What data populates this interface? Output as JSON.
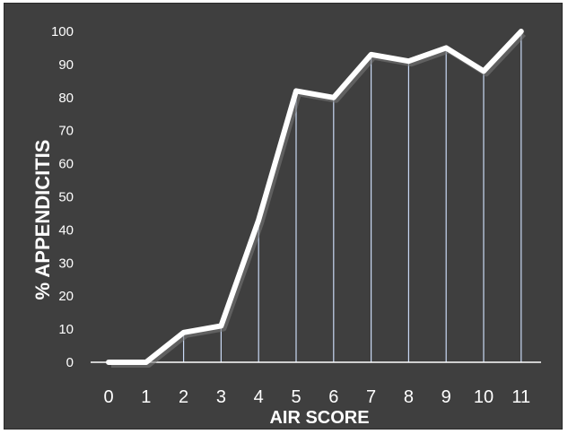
{
  "chart_data": {
    "type": "line",
    "xlabel": "AIR SCORE",
    "ylabel": "% APPENDICITIS",
    "x": [
      0,
      1,
      2,
      3,
      4,
      5,
      6,
      7,
      8,
      9,
      10,
      11
    ],
    "x_tick_labels": [
      "0",
      "1",
      "2",
      "3",
      "4",
      "5",
      "6",
      "7",
      "8",
      "9",
      "10",
      "11"
    ],
    "y_tick_labels": [
      "0",
      "10",
      "20",
      "30",
      "40",
      "50",
      "60",
      "70",
      "80",
      "90",
      "100"
    ],
    "series": [
      {
        "values": [
          0,
          0,
          9,
          11,
          43,
          82,
          80,
          93,
          91,
          95,
          88,
          100
        ]
      }
    ],
    "ylim": [
      0,
      100
    ],
    "drop_lines": true,
    "grid": false,
    "colors": {
      "background": "#3f3f3f",
      "line": "#ffffff",
      "drop_line": "#c9d9f5",
      "shadow": "#777777"
    }
  }
}
